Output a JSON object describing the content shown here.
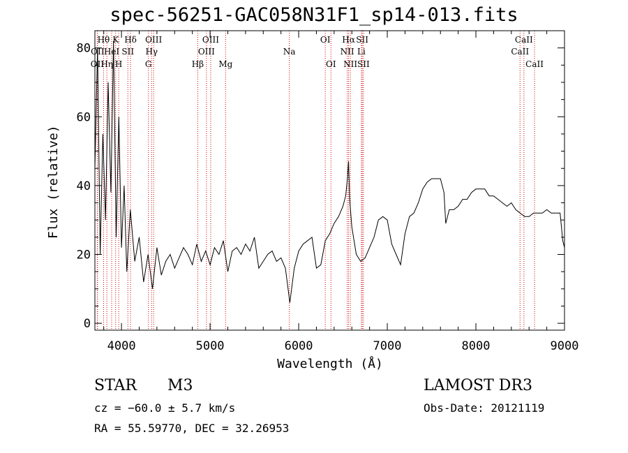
{
  "chart_data": {
    "type": "line",
    "title": "spec-56251-GAC058N31F1_sp14-013.fits",
    "xlabel": "Wavelength (Å)",
    "ylabel": "Flux (relative)",
    "xlim": [
      3700,
      9000
    ],
    "ylim": [
      -2,
      85
    ],
    "xticks": [
      4000,
      5000,
      6000,
      7000,
      8000,
      9000
    ],
    "yticks": [
      0,
      20,
      40,
      60,
      80
    ],
    "grid": false,
    "series": [
      {
        "x": [
          3700,
          3730,
          3760,
          3790,
          3820,
          3850,
          3880,
          3910,
          3940,
          3970,
          4000,
          4030,
          4060,
          4100,
          4150,
          4200,
          4250,
          4300,
          4350,
          4400,
          4450,
          4500,
          4550,
          4600,
          4650,
          4700,
          4750,
          4800,
          4850,
          4900,
          4950,
          5000,
          5050,
          5100,
          5150,
          5200,
          5250,
          5300,
          5350,
          5400,
          5450,
          5500,
          5550,
          5600,
          5650,
          5700,
          5750,
          5800,
          5850,
          5900,
          5950,
          6000,
          6050,
          6100,
          6150,
          6200,
          6250,
          6300,
          6350,
          6400,
          6450,
          6500,
          6530,
          6550,
          6563,
          6575,
          6600,
          6650,
          6700,
          6750,
          6800,
          6850,
          6900,
          6950,
          7000,
          7050,
          7100,
          7150,
          7200,
          7250,
          7300,
          7350,
          7400,
          7450,
          7500,
          7550,
          7600,
          7640,
          7660,
          7700,
          7750,
          7800,
          7850,
          7900,
          7950,
          8000,
          8050,
          8100,
          8150,
          8200,
          8250,
          8300,
          8350,
          8400,
          8450,
          8500,
          8550,
          8600,
          8650,
          8700,
          8750,
          8800,
          8850,
          8900,
          8950,
          8980,
          9000
        ],
        "y": [
          45,
          80,
          20,
          55,
          30,
          70,
          38,
          82,
          25,
          60,
          22,
          40,
          15,
          33,
          18,
          25,
          12,
          20,
          10,
          22,
          14,
          18,
          20,
          16,
          19,
          22,
          20,
          17,
          23,
          18,
          21,
          17,
          22,
          20,
          24,
          15,
          21,
          22,
          20,
          23,
          21,
          25,
          16,
          18,
          20,
          21,
          18,
          19,
          16,
          6,
          16,
          21,
          23,
          24,
          25,
          16,
          17,
          24,
          26,
          29,
          31,
          34,
          37,
          42,
          47,
          36,
          28,
          20,
          18,
          19,
          22,
          25,
          30,
          31,
          30,
          23,
          20,
          17,
          26,
          31,
          32,
          35,
          39,
          41,
          42,
          42,
          42,
          38,
          29,
          33,
          33,
          34,
          36,
          36,
          38,
          39,
          39,
          39,
          37,
          37,
          36,
          35,
          34,
          35,
          33,
          32,
          31,
          31,
          32,
          32,
          32,
          33,
          32,
          32,
          32,
          24,
          22
        ]
      }
    ],
    "lines": [
      {
        "label": "OII",
        "x": 3727,
        "row": 3
      },
      {
        "label": "Hθ",
        "x": 3798,
        "row": 1
      },
      {
        "label": "OII",
        "x": 3730,
        "row": 2
      },
      {
        "label": "Hη",
        "x": 3835,
        "row": 3
      },
      {
        "label": "HeI",
        "x": 3889,
        "row": 2
      },
      {
        "label": "K",
        "x": 3934,
        "row": 1
      },
      {
        "label": "H",
        "x": 3969,
        "row": 3
      },
      {
        "label": "SII",
        "x": 4072,
        "row": 2
      },
      {
        "label": "Hδ",
        "x": 4102,
        "row": 1
      },
      {
        "label": "G",
        "x": 4304,
        "row": 3
      },
      {
        "label": "Hγ",
        "x": 4340,
        "row": 2
      },
      {
        "label": "OIII",
        "x": 4363,
        "row": 1
      },
      {
        "label": "Hβ",
        "x": 4861,
        "row": 3
      },
      {
        "label": "OIII",
        "x": 4959,
        "row": 2
      },
      {
        "label": "OIII",
        "x": 5007,
        "row": 1
      },
      {
        "label": "Mg",
        "x": 5175,
        "row": 3
      },
      {
        "label": "Na",
        "x": 5894,
        "row": 2
      },
      {
        "label": "OI",
        "x": 6300,
        "row": 1
      },
      {
        "label": "OI",
        "x": 6364,
        "row": 3
      },
      {
        "label": "NII",
        "x": 6548,
        "row": 2
      },
      {
        "label": "Hα",
        "x": 6563,
        "row": 1
      },
      {
        "label": "NII",
        "x": 6583,
        "row": 3
      },
      {
        "label": "Li",
        "x": 6708,
        "row": 2
      },
      {
        "label": "SII",
        "x": 6717,
        "row": 1
      },
      {
        "label": "SII",
        "x": 6731,
        "row": 3
      },
      {
        "label": "CaII",
        "x": 8498,
        "row": 2
      },
      {
        "label": "CaII",
        "x": 8542,
        "row": 1
      },
      {
        "label": "CaII",
        "x": 8662,
        "row": 3
      }
    ]
  },
  "footer": {
    "class_label": "STAR",
    "subclass": "M3",
    "cz": "cz = −60.0 ± 5.7 km/s",
    "coords": "RA =  55.59770, DEC =  32.26953",
    "survey": "LAMOST DR3",
    "obs_date": "Obs-Date: 20121119"
  }
}
